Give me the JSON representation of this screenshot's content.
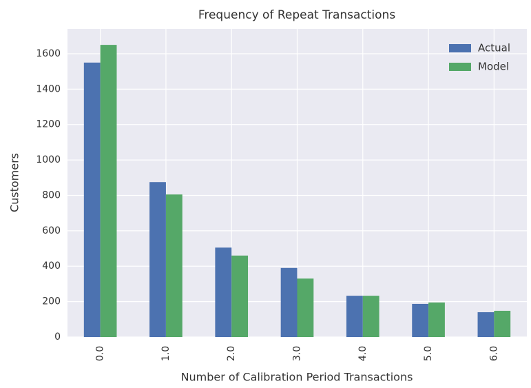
{
  "chart_data": {
    "type": "bar",
    "title": "Frequency of Repeat Transactions",
    "x_label": "Number of Calibration Period Transactions",
    "y_label": "Customers",
    "categories": [
      "0.0",
      "1.0",
      "2.0",
      "3.0",
      "4.0",
      "5.0",
      "6.0"
    ],
    "series": [
      {
        "name": "Actual",
        "color": "#4c72b0",
        "values": [
          1550,
          875,
          505,
          390,
          233,
          187,
          140
        ]
      },
      {
        "name": "Model",
        "color": "#55a868",
        "values": [
          1650,
          805,
          460,
          330,
          233,
          195,
          148
        ]
      }
    ],
    "ylim": [
      0,
      1740
    ],
    "yticks": [
      0,
      200,
      400,
      600,
      800,
      1000,
      1200,
      1400,
      1600
    ],
    "grid": true,
    "legend": "upper right"
  }
}
